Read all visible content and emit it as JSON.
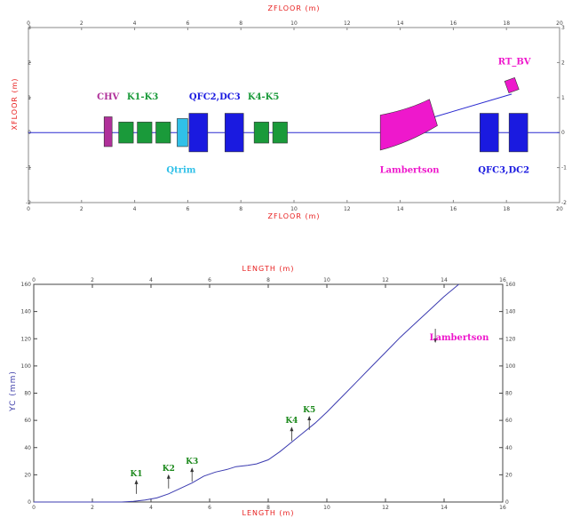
{
  "chart_data": [
    {
      "type": "diagram",
      "xlabel": "ZFLOOR   (m)",
      "ylabel": "XFLOOR   (m)",
      "xlim": [
        0,
        20
      ],
      "ylim": [
        -2,
        3
      ],
      "xticks": [
        "0",
        "2",
        "4",
        "6",
        "8",
        "10",
        "12",
        "14",
        "16",
        "18",
        "20"
      ],
      "yticks": [
        "-2",
        "-1",
        "0",
        "1",
        "2",
        "3"
      ],
      "xtick_values": [
        0,
        2,
        4,
        6,
        8,
        10,
        12,
        14,
        16,
        18,
        20
      ],
      "ytick_values": [
        -2,
        -1,
        0,
        1,
        2,
        3
      ],
      "beamline_y": 0,
      "extraction_line": [
        [
          13.3,
          0
        ],
        [
          18.2,
          1.1
        ]
      ],
      "elements": [
        {
          "name": "chv",
          "color": "#b0309a",
          "z": [
            2.85,
            3.15
          ],
          "x": [
            -0.4,
            0.45
          ]
        },
        {
          "name": "k1",
          "color": "#1a9a3a",
          "z": [
            3.4,
            3.95
          ],
          "x": [
            -0.3,
            0.3
          ]
        },
        {
          "name": "k2",
          "color": "#1a9a3a",
          "z": [
            4.1,
            4.65
          ],
          "x": [
            -0.3,
            0.3
          ]
        },
        {
          "name": "k3",
          "color": "#1a9a3a",
          "z": [
            4.8,
            5.35
          ],
          "x": [
            -0.3,
            0.3
          ]
        },
        {
          "name": "qtrim",
          "color": "#30c0e8",
          "z": [
            5.6,
            6.0
          ],
          "x": [
            -0.4,
            0.4
          ]
        },
        {
          "name": "qfc2",
          "color": "#1a1ae0",
          "z": [
            6.05,
            6.75
          ],
          "x": [
            -0.55,
            0.55
          ]
        },
        {
          "name": "dc3",
          "color": "#1a1ae0",
          "z": [
            7.4,
            8.1
          ],
          "x": [
            -0.55,
            0.55
          ]
        },
        {
          "name": "k4",
          "color": "#1a9a3a",
          "z": [
            8.5,
            9.05
          ],
          "x": [
            -0.3,
            0.3
          ]
        },
        {
          "name": "k5",
          "color": "#1a9a3a",
          "z": [
            9.2,
            9.75
          ],
          "x": [
            -0.3,
            0.3
          ]
        },
        {
          "name": "qfc3",
          "color": "#1a1ae0",
          "z": [
            17.0,
            17.7
          ],
          "x": [
            -0.55,
            0.55
          ]
        },
        {
          "name": "dc2",
          "color": "#1a1ae0",
          "z": [
            18.1,
            18.8
          ],
          "x": [
            -0.55,
            0.55
          ]
        }
      ],
      "lambertson_color": "#ee18cc",
      "rt_bv": {
        "z": 18.2,
        "x": 1.35,
        "color": "#ee18cc"
      },
      "labels": [
        {
          "text": "CHV",
          "color": "#b0309a"
        },
        {
          "text": "K1-K3",
          "color": "#1a9a3a"
        },
        {
          "text": "QFC2,DC3",
          "color": "#1a1ae0"
        },
        {
          "text": "K4-K5",
          "color": "#1a9a3a"
        },
        {
          "text": "Qtrim",
          "color": "#30c0e8"
        },
        {
          "text": "Lambertson",
          "color": "#ee18cc"
        },
        {
          "text": "QFC3,DC2",
          "color": "#1a1ae0"
        },
        {
          "text": "RT_BV",
          "color": "#ee18cc"
        }
      ]
    },
    {
      "type": "line",
      "xlabel": "LENGTH   (m)",
      "ylabel": "YC     (mm)",
      "xlim": [
        0,
        16
      ],
      "ylim": [
        0,
        160
      ],
      "xticks": [
        "0",
        "2",
        "4",
        "6",
        "8",
        "10",
        "12",
        "14",
        "16"
      ],
      "yticks": [
        "0",
        "20",
        "40",
        "60",
        "80",
        "100",
        "120",
        "140",
        "160"
      ],
      "xtick_values": [
        0,
        2,
        4,
        6,
        8,
        10,
        12,
        14,
        16
      ],
      "ytick_values": [
        0,
        20,
        40,
        60,
        80,
        100,
        120,
        140,
        160
      ],
      "series": [
        {
          "color": "#3b3bb0",
          "x": [
            0,
            3.0,
            3.4,
            3.8,
            4.2,
            4.6,
            5.0,
            5.4,
            5.8,
            6.2,
            6.6,
            6.9,
            7.3,
            7.6,
            8.0,
            8.4,
            8.8,
            9.2,
            9.6,
            10.0,
            10.5,
            11.0,
            11.5,
            12.0,
            12.5,
            13.0,
            13.5,
            14.0,
            14.5
          ],
          "y": [
            0,
            0,
            0.5,
            1.5,
            3,
            6,
            10,
            14,
            19,
            22,
            24,
            26,
            27,
            28,
            31,
            37,
            44,
            51,
            58,
            66,
            77,
            88,
            99,
            110,
            121,
            131,
            141,
            151,
            160
          ]
        }
      ],
      "annotations": [
        {
          "text": "K1",
          "x": 3.5,
          "y": 19
        },
        {
          "text": "K2",
          "x": 4.6,
          "y": 23
        },
        {
          "text": "K3",
          "x": 5.4,
          "y": 28
        },
        {
          "text": "K4",
          "x": 8.8,
          "y": 58
        },
        {
          "text": "K5",
          "x": 9.4,
          "y": 66
        },
        {
          "text": "Lambertson",
          "x": 13.3,
          "y": 119,
          "color": "#ee18cc"
        }
      ]
    }
  ]
}
